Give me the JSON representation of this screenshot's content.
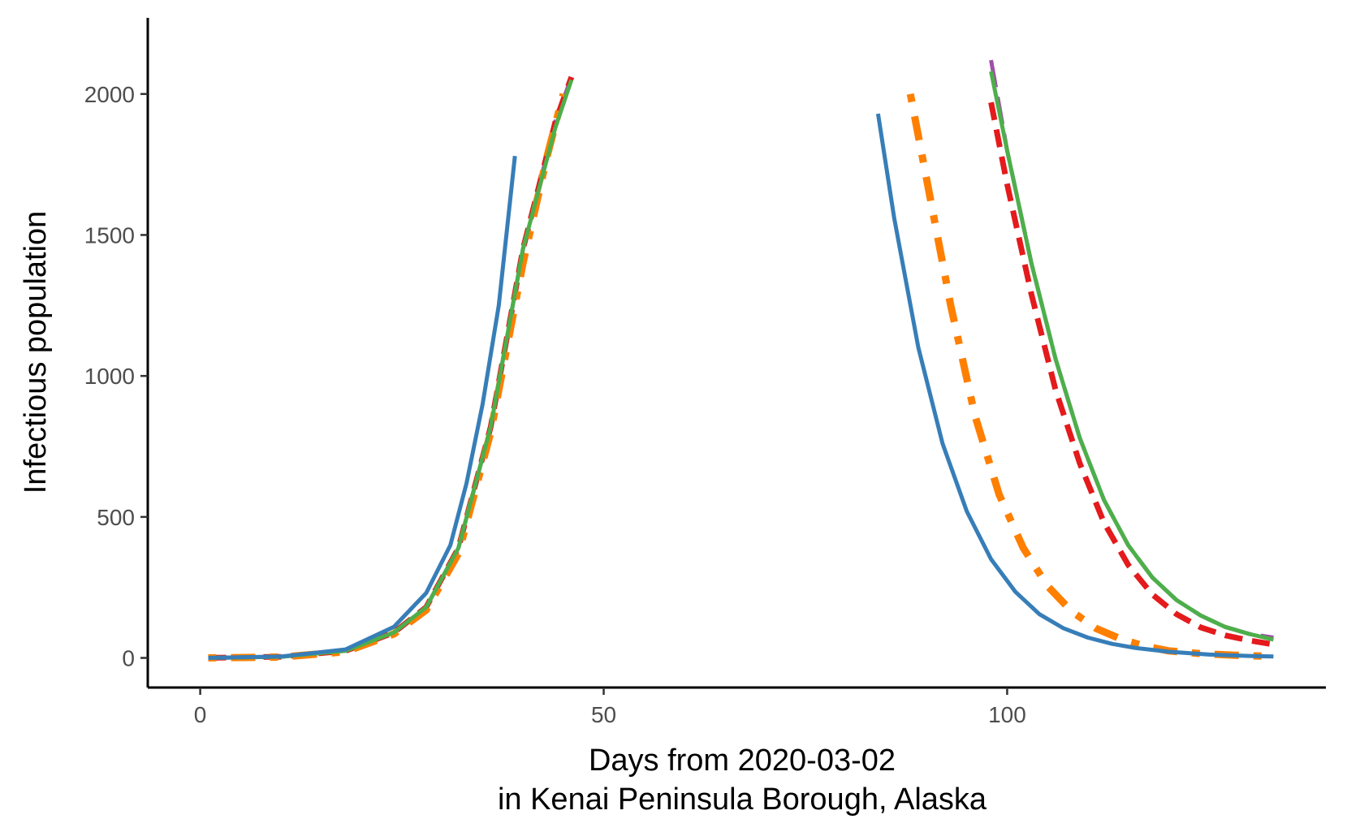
{
  "chart_data": {
    "type": "line",
    "title": "",
    "xlabel": "Days from 2020-03-02",
    "xlabel_line2": "in Kenai Peninsula Borough, Alaska",
    "ylabel": "Infectious population",
    "xlim": [
      -6.5,
      139.5
    ],
    "ylim": [
      -105,
      2270
    ],
    "x_ticks": [
      0,
      50,
      100
    ],
    "y_ticks": [
      0,
      500,
      1000,
      1500,
      2000
    ],
    "grid": false,
    "legend": "none",
    "series": [
      {
        "color": "#9E50A8",
        "dash": "longdash",
        "width": 5,
        "segments": [
          [
            [
              1,
              0
            ],
            [
              10,
              4
            ],
            [
              18,
              25
            ],
            [
              24,
              90
            ],
            [
              28,
              180
            ],
            [
              32,
              390
            ],
            [
              36,
              820
            ],
            [
              40,
              1450
            ],
            [
              44,
              1900
            ],
            [
              46,
              2060
            ]
          ],
          [
            [
              98,
              2120
            ],
            [
              100,
              1800
            ],
            [
              103,
              1400
            ],
            [
              106,
              1060
            ],
            [
              109,
              780
            ],
            [
              112,
              560
            ],
            [
              115,
              400
            ],
            [
              118,
              285
            ],
            [
              121,
              205
            ],
            [
              124,
              150
            ],
            [
              127,
              110
            ],
            [
              130,
              85
            ],
            [
              133,
              72
            ]
          ]
        ]
      },
      {
        "color": "#E41A1C",
        "dash": "dashed",
        "width": 7,
        "segments": [
          [
            [
              1,
              0
            ],
            [
              10,
              4
            ],
            [
              18,
              25
            ],
            [
              24,
              90
            ],
            [
              28,
              180
            ],
            [
              32,
              390
            ],
            [
              36,
              820
            ],
            [
              40,
              1450
            ],
            [
              44,
              1900
            ],
            [
              46,
              2060
            ]
          ],
          [
            [
              98,
              1970
            ],
            [
              100,
              1680
            ],
            [
              103,
              1290
            ],
            [
              106,
              950
            ],
            [
              109,
              690
            ],
            [
              112,
              480
            ],
            [
              115,
              330
            ],
            [
              118,
              225
            ],
            [
              121,
              155
            ],
            [
              124,
              108
            ],
            [
              127,
              80
            ],
            [
              130,
              62
            ],
            [
              133,
              48
            ]
          ]
        ]
      },
      {
        "color": "#FF7F00",
        "dash": "dotdash",
        "width": 9,
        "segments": [
          [
            [
              1,
              0
            ],
            [
              10,
              3
            ],
            [
              18,
              22
            ],
            [
              24,
              85
            ],
            [
              28,
              170
            ],
            [
              32,
              370
            ],
            [
              36,
              800
            ],
            [
              40,
              1400
            ],
            [
              43,
              1780
            ],
            [
              45,
              2000
            ]
          ],
          [
            [
              88,
              2000
            ],
            [
              90,
              1700
            ],
            [
              93,
              1250
            ],
            [
              96,
              860
            ],
            [
              99,
              580
            ],
            [
              102,
              390
            ],
            [
              105,
              255
            ],
            [
              108,
              165
            ],
            [
              111,
              105
            ],
            [
              114,
              68
            ],
            [
              117,
              42
            ],
            [
              120,
              25
            ],
            [
              124,
              15
            ],
            [
              128,
              10
            ],
            [
              133,
              5
            ]
          ]
        ]
      },
      {
        "color": "#4DAF4A",
        "dash": "solid",
        "width": 5,
        "segments": [
          [
            [
              1,
              0
            ],
            [
              10,
              4
            ],
            [
              18,
              25
            ],
            [
              24,
              90
            ],
            [
              28,
              180
            ],
            [
              32,
              390
            ],
            [
              36,
              820
            ],
            [
              40,
              1450
            ],
            [
              44,
              1880
            ],
            [
              46,
              2050
            ]
          ],
          [
            [
              98,
              2080
            ],
            [
              100,
              1800
            ],
            [
              103,
              1400
            ],
            [
              106,
              1060
            ],
            [
              109,
              780
            ],
            [
              112,
              560
            ],
            [
              115,
              400
            ],
            [
              118,
              285
            ],
            [
              121,
              205
            ],
            [
              124,
              150
            ],
            [
              127,
              110
            ],
            [
              130,
              85
            ],
            [
              133,
              65
            ]
          ]
        ]
      },
      {
        "color": "#377EB8",
        "dash": "solid",
        "width": 5,
        "segments": [
          [
            [
              1,
              0
            ],
            [
              10,
              5
            ],
            [
              18,
              30
            ],
            [
              24,
              110
            ],
            [
              28,
              230
            ],
            [
              31,
              400
            ],
            [
              33,
              620
            ],
            [
              35,
              900
            ],
            [
              37,
              1250
            ],
            [
              39,
              1780
            ]
          ],
          [
            [
              84,
              1930
            ],
            [
              86,
              1560
            ],
            [
              89,
              1100
            ],
            [
              92,
              760
            ],
            [
              95,
              520
            ],
            [
              98,
              350
            ],
            [
              101,
              235
            ],
            [
              104,
              155
            ],
            [
              107,
              105
            ],
            [
              110,
              72
            ],
            [
              113,
              50
            ],
            [
              116,
              35
            ],
            [
              120,
              22
            ],
            [
              125,
              12
            ],
            [
              130,
              7
            ],
            [
              133,
              5
            ]
          ]
        ]
      }
    ]
  }
}
